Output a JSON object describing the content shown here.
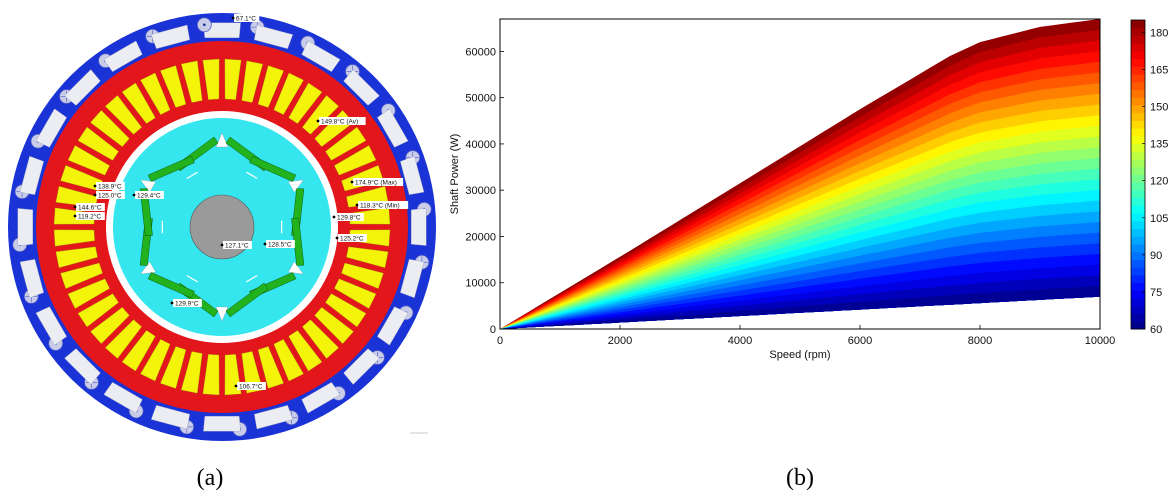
{
  "panel_a": {
    "caption": "(a)",
    "colors": {
      "housing": "#1a33d6",
      "stator": "#e3161b",
      "winding": "#f4f40a",
      "rotor": "#35e6ee",
      "magnet": "#22b21e",
      "shaft": "#9a9a9a"
    },
    "temperature_labels": [
      {
        "id": "housing-top",
        "text": "67.1°C"
      },
      {
        "id": "winding-av",
        "text": "149.8°C (Av)"
      },
      {
        "id": "winding-max",
        "text": "174.9°C (Max)"
      },
      {
        "id": "winding-min",
        "text": "118.3°C (Min)"
      },
      {
        "id": "rotor-right",
        "text": "129.8°C"
      },
      {
        "id": "tooth-right",
        "text": "125.2°C"
      },
      {
        "id": "slot-left-1",
        "text": "138.9°C"
      },
      {
        "id": "slot-left-2",
        "text": "125.0°C"
      },
      {
        "id": "slot-left-3",
        "text": "144.6°C"
      },
      {
        "id": "slot-left-4",
        "text": "119.2°C"
      },
      {
        "id": "rotor-left",
        "text": "129.4°C"
      },
      {
        "id": "shaft",
        "text": "127.1°C"
      },
      {
        "id": "rotor-center",
        "text": "128.5°C"
      },
      {
        "id": "magnet-bottom",
        "text": "129.9°C"
      },
      {
        "id": "stator-bottom",
        "text": "106.7°C"
      }
    ]
  },
  "panel_b": {
    "caption": "(b)",
    "chart_data": {
      "type": "area",
      "xlabel": "Speed  (rpm)",
      "ylabel": "Shaft Power  (W)",
      "xlim": [
        0,
        10000
      ],
      "ylim": [
        0,
        67000
      ],
      "x_ticks": [
        "0",
        "2000",
        "4000",
        "6000",
        "8000",
        "10000"
      ],
      "y_ticks": [
        "0",
        "10000",
        "20000",
        "30000",
        "40000",
        "50000",
        "60000"
      ],
      "grid": false,
      "upper_boundary": {
        "x": [
          0,
          2000,
          4000,
          6000,
          7500,
          8000,
          9000,
          10000
        ],
        "y": [
          0,
          15600,
          31500,
          47500,
          59000,
          62000,
          65300,
          67000
        ]
      },
      "lower_boundary": {
        "x": [
          0,
          10000
        ],
        "y": [
          0,
          7000
        ]
      },
      "colorbar": {
        "range": [
          60,
          185
        ],
        "ticks": [
          "60",
          "75",
          "90",
          "105",
          "120",
          "135",
          "150",
          "165",
          "180"
        ],
        "colormap": "jet",
        "position": "right"
      }
    }
  }
}
